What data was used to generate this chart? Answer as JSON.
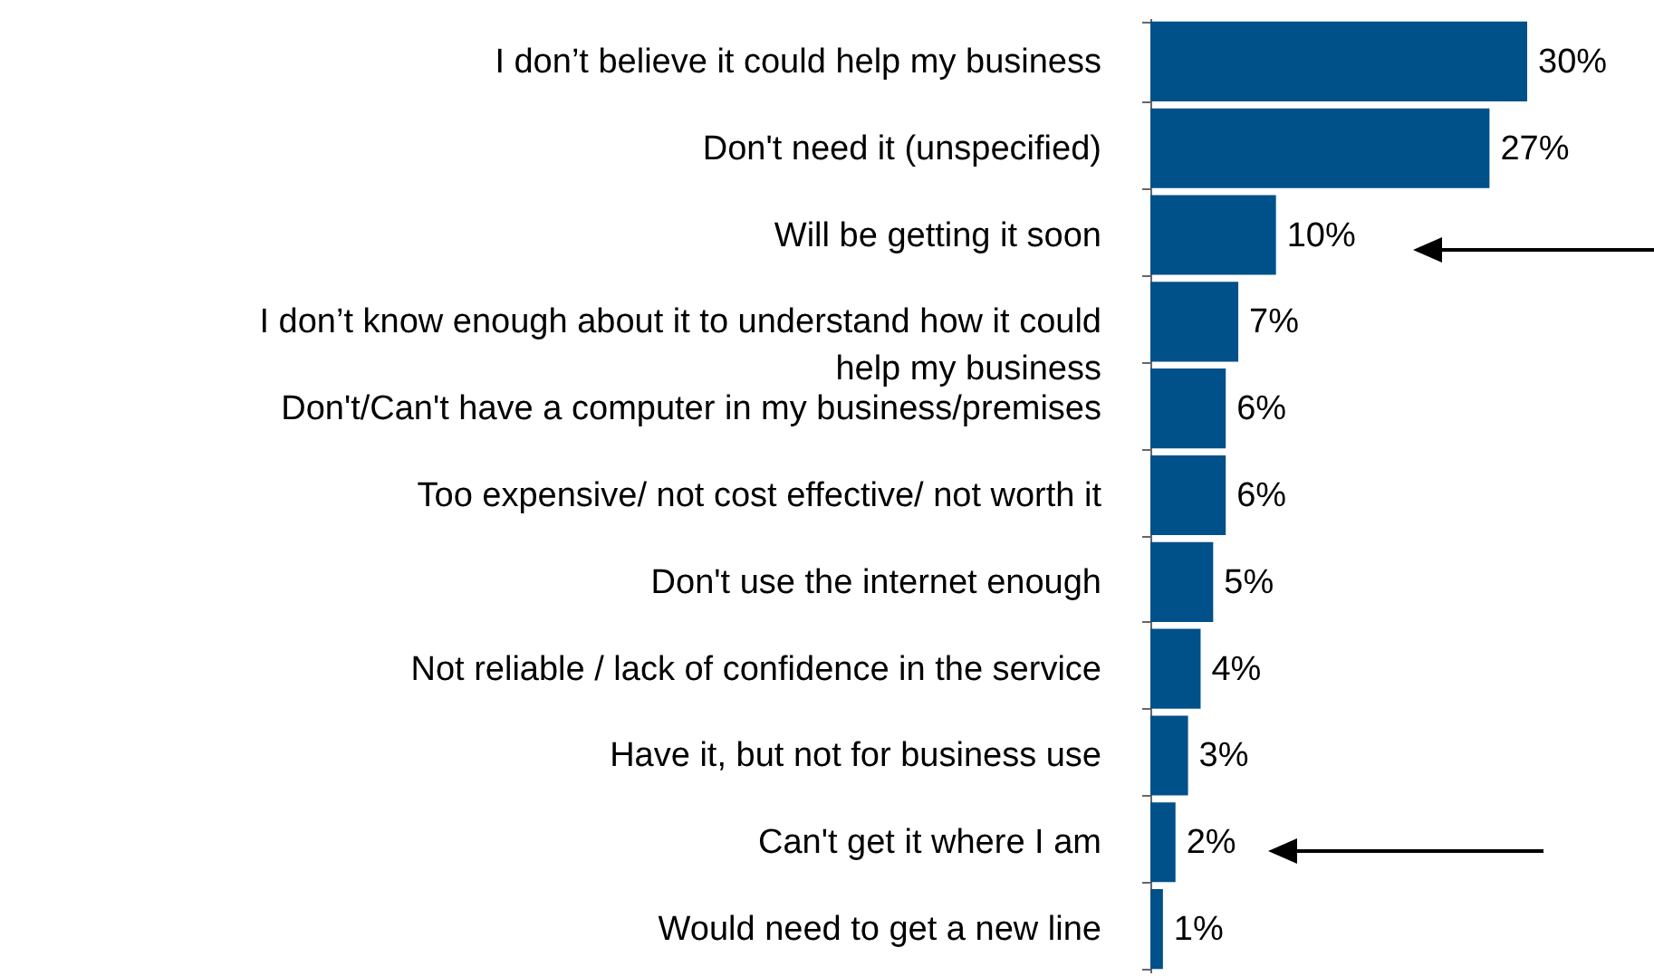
{
  "chart_data": {
    "type": "bar",
    "orientation": "horizontal",
    "color": "#00508a",
    "categories": [
      "I don’t believe it could help my business",
      "Don't need it (unspecified)",
      "Will be getting it soon",
      "I don’t know enough about it to understand how it could help my business",
      "Don't/Can't have a computer in my business/premises",
      "Too expensive/ not cost effective/ not worth it",
      "Don't use the internet enough",
      "Not reliable / lack of confidence in the service",
      "Have it, but not for business use",
      "Can't get it where I am",
      "Would need to get a new line"
    ],
    "values": [
      30,
      27,
      10,
      7,
      6,
      6,
      5,
      4,
      3,
      2,
      1
    ],
    "value_labels": [
      "30%",
      "27%",
      "10%",
      "7%",
      "6%",
      "6%",
      "5%",
      "4%",
      "3%",
      "2%",
      "1%"
    ],
    "tick_labels": "y"
  }
}
